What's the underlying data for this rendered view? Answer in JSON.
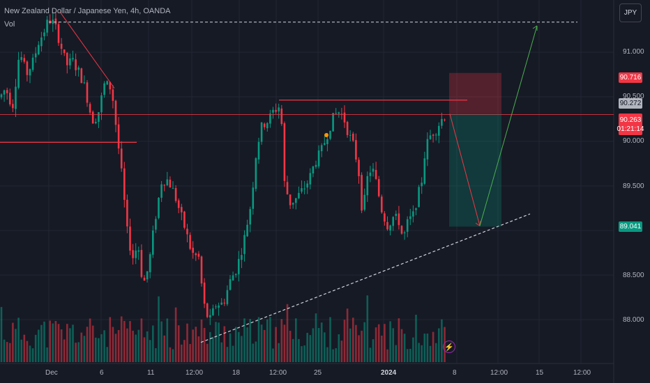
{
  "legend": {
    "title": "New Zealand Dollar / Japanese Yen, 4h, OANDA",
    "volume_label": "Vol"
  },
  "currency_button": {
    "label": "JPY"
  },
  "price_axis": {
    "ticks": [
      "91.000",
      "90.500",
      "90.000",
      "89.500",
      "88.500",
      "88.000"
    ]
  },
  "time_axis": {
    "ticks": [
      "Dec",
      "6",
      "11",
      "12:00",
      "18",
      "12:00",
      "25",
      "2024",
      "8",
      "12:00",
      "15",
      "12:00"
    ]
  },
  "price_tags": {
    "stop": "90.716",
    "entry": "90.272",
    "last_price": "90.263",
    "countdown": "01:21:14",
    "target": "89.041"
  },
  "colors": {
    "background": "#161a25",
    "up": "#089981",
    "down": "#f23645",
    "grid": "#232632",
    "text": "#b2b5be"
  },
  "chart_data": {
    "type": "candlestick",
    "symbol": "NZDJPY",
    "timeframe": "4h",
    "y_range": [
      87.55,
      91.45
    ],
    "key_levels": {
      "horizontal_resistance": 90.42,
      "dashed_top": 91.27,
      "support_left": 89.96,
      "stop": 90.716,
      "entry": 90.272,
      "target": 89.041
    },
    "ascending_trendline": {
      "from": 87.78,
      "to": 89.18
    },
    "descending_trendline": {
      "from": 91.38,
      "to": 90.55
    },
    "projection": {
      "down_to": 89.05,
      "then_up_to": 91.23
    }
  }
}
